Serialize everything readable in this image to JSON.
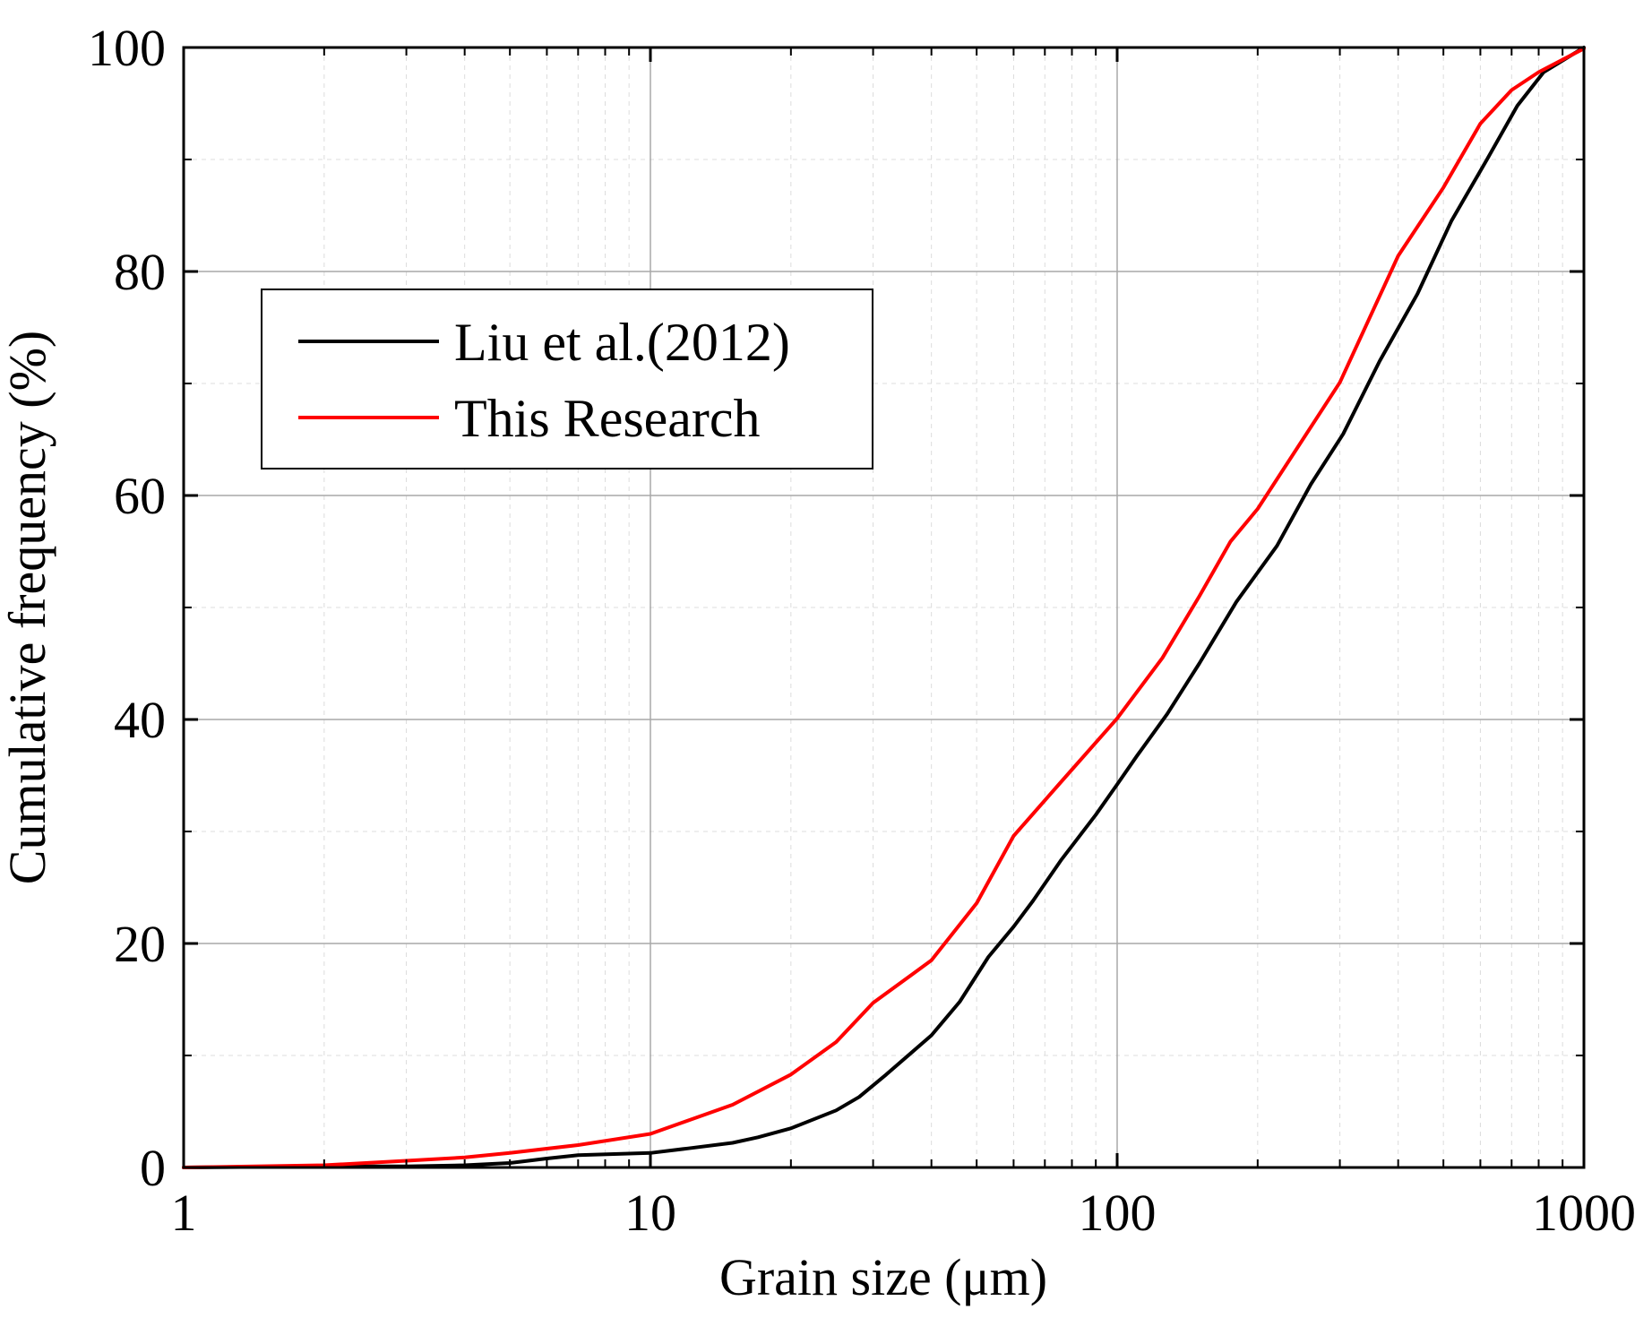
{
  "chart_data": {
    "type": "line",
    "title": "",
    "xlabel": "Grain size (μm)",
    "ylabel": "Cumulative frequency (%)",
    "xscale": "log",
    "xlim": [
      1,
      1000
    ],
    "ylim": [
      0,
      100
    ],
    "x_ticks": [
      1,
      10,
      100,
      1000
    ],
    "x_tick_labels": [
      "1",
      "10",
      "100",
      "1000"
    ],
    "y_ticks": [
      0,
      20,
      40,
      60,
      80,
      100
    ],
    "y_tick_labels": [
      "0",
      "20",
      "40",
      "60",
      "80",
      "100"
    ],
    "grid": true,
    "legend_position": "upper-left",
    "series": [
      {
        "name": "Liu et al.(2012)",
        "color": "#000000",
        "points": [
          [
            1,
            0
          ],
          [
            2,
            0.1
          ],
          [
            3,
            0.1
          ],
          [
            4,
            0.2
          ],
          [
            5,
            0.4
          ],
          [
            6,
            0.8
          ],
          [
            7,
            1.1
          ],
          [
            10,
            1.3
          ],
          [
            12,
            1.7
          ],
          [
            15,
            2.2
          ],
          [
            17,
            2.7
          ],
          [
            20,
            3.5
          ],
          [
            25,
            5.1
          ],
          [
            28,
            6.3
          ],
          [
            32,
            8.3
          ],
          [
            40,
            11.8
          ],
          [
            46,
            14.8
          ],
          [
            53,
            18.8
          ],
          [
            60,
            21.5
          ],
          [
            66,
            23.8
          ],
          [
            76,
            27.5
          ],
          [
            90,
            31.5
          ],
          [
            100,
            34.2
          ],
          [
            110,
            36.7
          ],
          [
            128,
            40.5
          ],
          [
            150,
            45.0
          ],
          [
            180,
            50.5
          ],
          [
            220,
            55.5
          ],
          [
            260,
            61.0
          ],
          [
            305,
            65.5
          ],
          [
            365,
            72.0
          ],
          [
            440,
            78.0
          ],
          [
            520,
            84.5
          ],
          [
            620,
            90.0
          ],
          [
            720,
            94.8
          ],
          [
            820,
            97.8
          ],
          [
            1000,
            100
          ]
        ]
      },
      {
        "name": "This Research",
        "color": "#ff0000",
        "points": [
          [
            1,
            0
          ],
          [
            2,
            0.2
          ],
          [
            3,
            0.6
          ],
          [
            4,
            0.9
          ],
          [
            5,
            1.3
          ],
          [
            7,
            2.0
          ],
          [
            10,
            3.0
          ],
          [
            15,
            5.6
          ],
          [
            20,
            8.3
          ],
          [
            25,
            11.2
          ],
          [
            30,
            14.7
          ],
          [
            40,
            18.5
          ],
          [
            50,
            23.6
          ],
          [
            60,
            29.6
          ],
          [
            75,
            34.2
          ],
          [
            100,
            40.1
          ],
          [
            125,
            45.5
          ],
          [
            150,
            51.0
          ],
          [
            175,
            55.9
          ],
          [
            200,
            58.8
          ],
          [
            300,
            70.1
          ],
          [
            400,
            81.4
          ],
          [
            500,
            87.5
          ],
          [
            600,
            93.2
          ],
          [
            700,
            96.2
          ],
          [
            800,
            97.8
          ],
          [
            1000,
            99.9
          ]
        ]
      }
    ]
  }
}
